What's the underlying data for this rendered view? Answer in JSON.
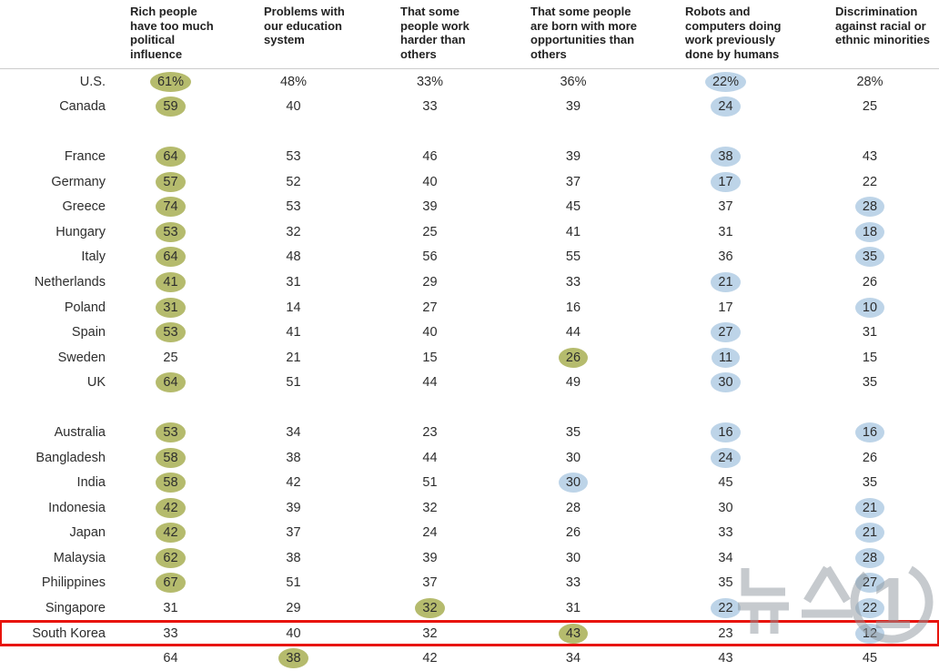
{
  "chart_data": {
    "type": "table",
    "columns": [
      "Rich people have too much political influence",
      "Problems with our education system",
      "That some people work harder than others",
      "That some people are born with more opportunities than others",
      "Robots and computers doing work previously done by humans",
      "Discrimination against racial or ethnic minorities"
    ],
    "groups": [
      {
        "rows": [
          {
            "country": "U.S.",
            "values": [
              "61%",
              "48%",
              "33%",
              "36%",
              "22%",
              "28%"
            ],
            "marks": [
              "g",
              "",
              "",
              "",
              "b",
              ""
            ]
          },
          {
            "country": "Canada",
            "values": [
              "59",
              "40",
              "33",
              "39",
              "24",
              "25"
            ],
            "marks": [
              "g",
              "",
              "",
              "",
              "b",
              ""
            ]
          }
        ]
      },
      {
        "rows": [
          {
            "country": "France",
            "values": [
              "64",
              "53",
              "46",
              "39",
              "38",
              "43"
            ],
            "marks": [
              "g",
              "",
              "",
              "",
              "b",
              ""
            ]
          },
          {
            "country": "Germany",
            "values": [
              "57",
              "52",
              "40",
              "37",
              "17",
              "22"
            ],
            "marks": [
              "g",
              "",
              "",
              "",
              "b",
              ""
            ]
          },
          {
            "country": "Greece",
            "values": [
              "74",
              "53",
              "39",
              "45",
              "37",
              "28"
            ],
            "marks": [
              "g",
              "",
              "",
              "",
              "",
              "b"
            ]
          },
          {
            "country": "Hungary",
            "values": [
              "53",
              "32",
              "25",
              "41",
              "31",
              "18"
            ],
            "marks": [
              "g",
              "",
              "",
              "",
              "",
              "b"
            ]
          },
          {
            "country": "Italy",
            "values": [
              "64",
              "48",
              "56",
              "55",
              "36",
              "35"
            ],
            "marks": [
              "g",
              "",
              "",
              "",
              "",
              "b"
            ]
          },
          {
            "country": "Netherlands",
            "values": [
              "41",
              "31",
              "29",
              "33",
              "21",
              "26"
            ],
            "marks": [
              "g",
              "",
              "",
              "",
              "b",
              ""
            ]
          },
          {
            "country": "Poland",
            "values": [
              "31",
              "14",
              "27",
              "16",
              "17",
              "10"
            ],
            "marks": [
              "g",
              "",
              "",
              "",
              "",
              "b"
            ]
          },
          {
            "country": "Spain",
            "values": [
              "53",
              "41",
              "40",
              "44",
              "27",
              "31"
            ],
            "marks": [
              "g",
              "",
              "",
              "",
              "b",
              ""
            ]
          },
          {
            "country": "Sweden",
            "values": [
              "25",
              "21",
              "15",
              "26",
              "11",
              "15"
            ],
            "marks": [
              "",
              "",
              "",
              "g",
              "b",
              ""
            ]
          },
          {
            "country": "UK",
            "values": [
              "64",
              "51",
              "44",
              "49",
              "30",
              "35"
            ],
            "marks": [
              "g",
              "",
              "",
              "",
              "b",
              ""
            ]
          }
        ]
      },
      {
        "rows": [
          {
            "country": "Australia",
            "values": [
              "53",
              "34",
              "23",
              "35",
              "16",
              "16"
            ],
            "marks": [
              "g",
              "",
              "",
              "",
              "b",
              "b"
            ]
          },
          {
            "country": "Bangladesh",
            "values": [
              "58",
              "38",
              "44",
              "30",
              "24",
              "26"
            ],
            "marks": [
              "g",
              "",
              "",
              "",
              "b",
              ""
            ]
          },
          {
            "country": "India",
            "values": [
              "58",
              "42",
              "51",
              "30",
              "45",
              "35"
            ],
            "marks": [
              "g",
              "",
              "",
              "b",
              "",
              ""
            ]
          },
          {
            "country": "Indonesia",
            "values": [
              "42",
              "39",
              "32",
              "28",
              "30",
              "21"
            ],
            "marks": [
              "g",
              "",
              "",
              "",
              "",
              "b"
            ]
          },
          {
            "country": "Japan",
            "values": [
              "42",
              "37",
              "24",
              "26",
              "33",
              "21"
            ],
            "marks": [
              "g",
              "",
              "",
              "",
              "",
              "b"
            ]
          },
          {
            "country": "Malaysia",
            "values": [
              "62",
              "38",
              "39",
              "30",
              "34",
              "28"
            ],
            "marks": [
              "g",
              "",
              "",
              "",
              "",
              "b"
            ]
          },
          {
            "country": "Philippines",
            "values": [
              "67",
              "51",
              "37",
              "33",
              "35",
              "27"
            ],
            "marks": [
              "g",
              "",
              "",
              "",
              "",
              "b"
            ]
          },
          {
            "country": "Singapore",
            "values": [
              "31",
              "29",
              "32",
              "31",
              "22",
              "22"
            ],
            "marks": [
              "",
              "",
              "g",
              "",
              "b",
              "b"
            ]
          },
          {
            "country": "South Korea",
            "values": [
              "33",
              "40",
              "32",
              "43",
              "23",
              "12"
            ],
            "marks": [
              "",
              "",
              "",
              "g",
              "",
              "b"
            ],
            "boxed": true
          },
          {
            "country": "",
            "values": [
              "64",
              "38",
              "42",
              "34",
              "43",
              "45"
            ],
            "marks": [
              "",
              "g",
              "",
              "",
              "",
              ""
            ],
            "partial": true
          }
        ]
      }
    ],
    "layout": {
      "highlighted_row": "South Korea",
      "grid": "off",
      "row_labels_position": "left"
    }
  },
  "highlight": {
    "green": "#b5bb6d",
    "blue": "#bdd4e8",
    "box_red": "#e8140c"
  },
  "watermark": {
    "text": "뉴스1"
  }
}
